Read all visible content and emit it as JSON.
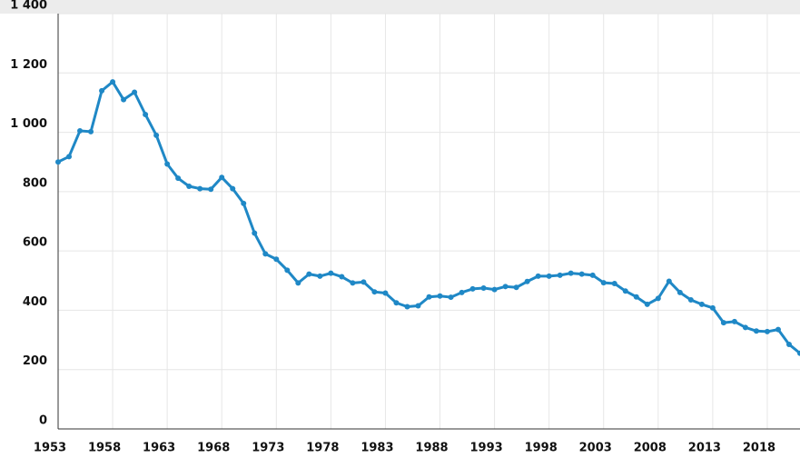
{
  "chart_data": {
    "type": "line",
    "x": [
      1953,
      1954,
      1955,
      1956,
      1957,
      1958,
      1959,
      1960,
      1961,
      1962,
      1963,
      1964,
      1965,
      1966,
      1967,
      1968,
      1969,
      1970,
      1971,
      1972,
      1973,
      1974,
      1975,
      1976,
      1977,
      1978,
      1979,
      1980,
      1981,
      1982,
      1983,
      1984,
      1985,
      1986,
      1987,
      1988,
      1989,
      1990,
      1991,
      1992,
      1993,
      1994,
      1995,
      1996,
      1997,
      1998,
      1999,
      2000,
      2001,
      2002,
      2003,
      2004,
      2005,
      2006,
      2007,
      2008,
      2009,
      2010,
      2011,
      2012,
      2013,
      2014,
      2015,
      2016,
      2017,
      2018,
      2019,
      2020,
      2021
    ],
    "series": [
      {
        "color": "#1f88c6",
        "values": [
          900,
          918,
          1005,
          1002,
          1140,
          1170,
          1110,
          1135,
          1060,
          990,
          893,
          845,
          818,
          810,
          808,
          848,
          810,
          760,
          660,
          590,
          572,
          535,
          492,
          522,
          515,
          525,
          513,
          492,
          495,
          462,
          458,
          425,
          412,
          415,
          445,
          448,
          444,
          460,
          472,
          475,
          470,
          480,
          477,
          497,
          515,
          515,
          518,
          525,
          522,
          518,
          493,
          490,
          465,
          445,
          420,
          440,
          498,
          460,
          435,
          420,
          408,
          358,
          362,
          342,
          330,
          328,
          335,
          285,
          255
        ]
      }
    ],
    "xlim": [
      1953,
      2021
    ],
    "xticks": [
      1953,
      1958,
      1963,
      1968,
      1973,
      1978,
      1983,
      1988,
      1993,
      1998,
      2003,
      2008,
      2013,
      2018
    ],
    "ylim": [
      0,
      1400
    ],
    "yticks": [
      0,
      {
        "value": 200,
        "label": "200"
      },
      400,
      600,
      800,
      {
        "value": 1000,
        "label": "1 000"
      },
      {
        "value": 1200,
        "label": "1 200"
      },
      {
        "value": 1400,
        "label": "1 400"
      }
    ],
    "grid": true
  }
}
